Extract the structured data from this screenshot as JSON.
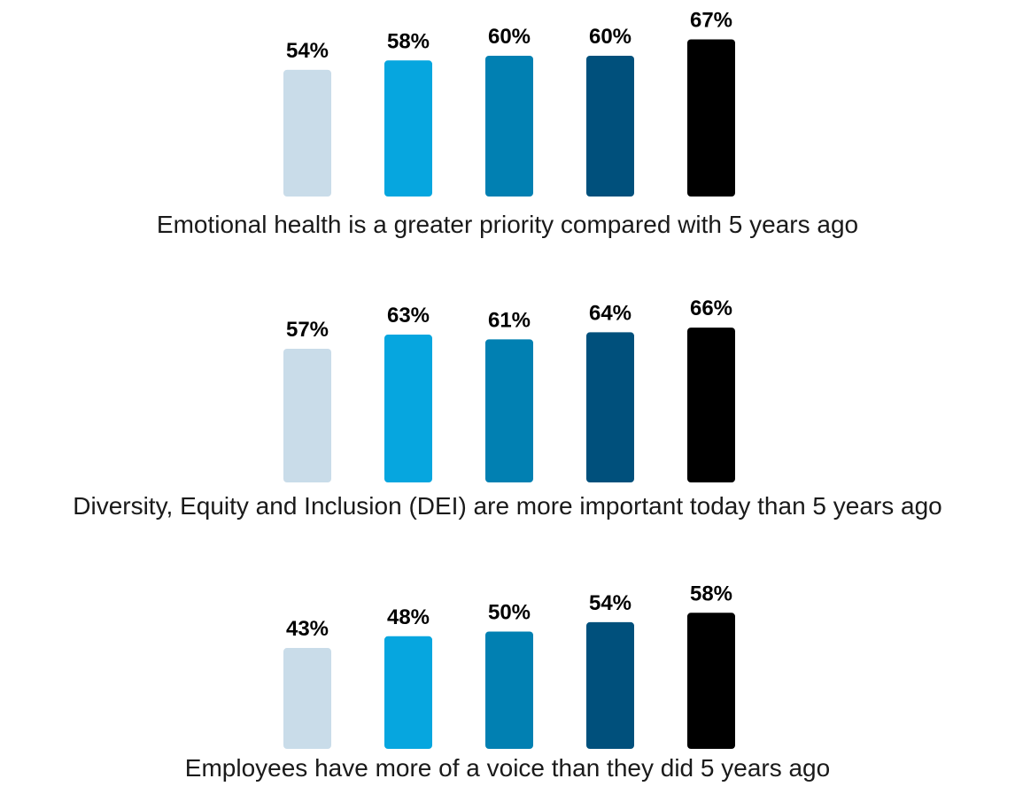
{
  "chart_data": [
    {
      "type": "bar",
      "title": "",
      "caption": "Emotional health is a greater priority compared with 5 years ago",
      "categories": [
        "",
        "",
        "",
        "",
        ""
      ],
      "values": [
        54,
        58,
        60,
        60,
        67
      ],
      "value_labels": [
        "54%",
        "58%",
        "60%",
        "60%",
        "67%"
      ],
      "bar_colors": [
        "#c9dce9",
        "#06a6df",
        "#0180b2",
        "#00507c",
        "#000000"
      ],
      "xlabel": "",
      "ylabel": "",
      "grid": false,
      "ylim": [
        0,
        67
      ]
    },
    {
      "type": "bar",
      "title": "",
      "caption": "Diversity, Equity and Inclusion (DEI) are more important today than 5 years ago",
      "categories": [
        "",
        "",
        "",
        "",
        ""
      ],
      "values": [
        57,
        63,
        61,
        64,
        66
      ],
      "value_labels": [
        "57%",
        "63%",
        "61%",
        "64%",
        "66%"
      ],
      "bar_colors": [
        "#c9dce9",
        "#06a6df",
        "#0180b2",
        "#00507c",
        "#000000"
      ],
      "xlabel": "",
      "ylabel": "",
      "grid": false,
      "ylim": [
        0,
        67
      ]
    },
    {
      "type": "bar",
      "title": "",
      "caption": "Employees have more of a voice than they did 5 years ago",
      "categories": [
        "",
        "",
        "",
        "",
        ""
      ],
      "values": [
        43,
        48,
        50,
        54,
        58
      ],
      "value_labels": [
        "43%",
        "48%",
        "50%",
        "54%",
        "58%"
      ],
      "bar_colors": [
        "#c9dce9",
        "#06a6df",
        "#0180b2",
        "#00507c",
        "#000000"
      ],
      "xlabel": "",
      "ylabel": "",
      "grid": false,
      "ylim": [
        0,
        67
      ]
    }
  ]
}
